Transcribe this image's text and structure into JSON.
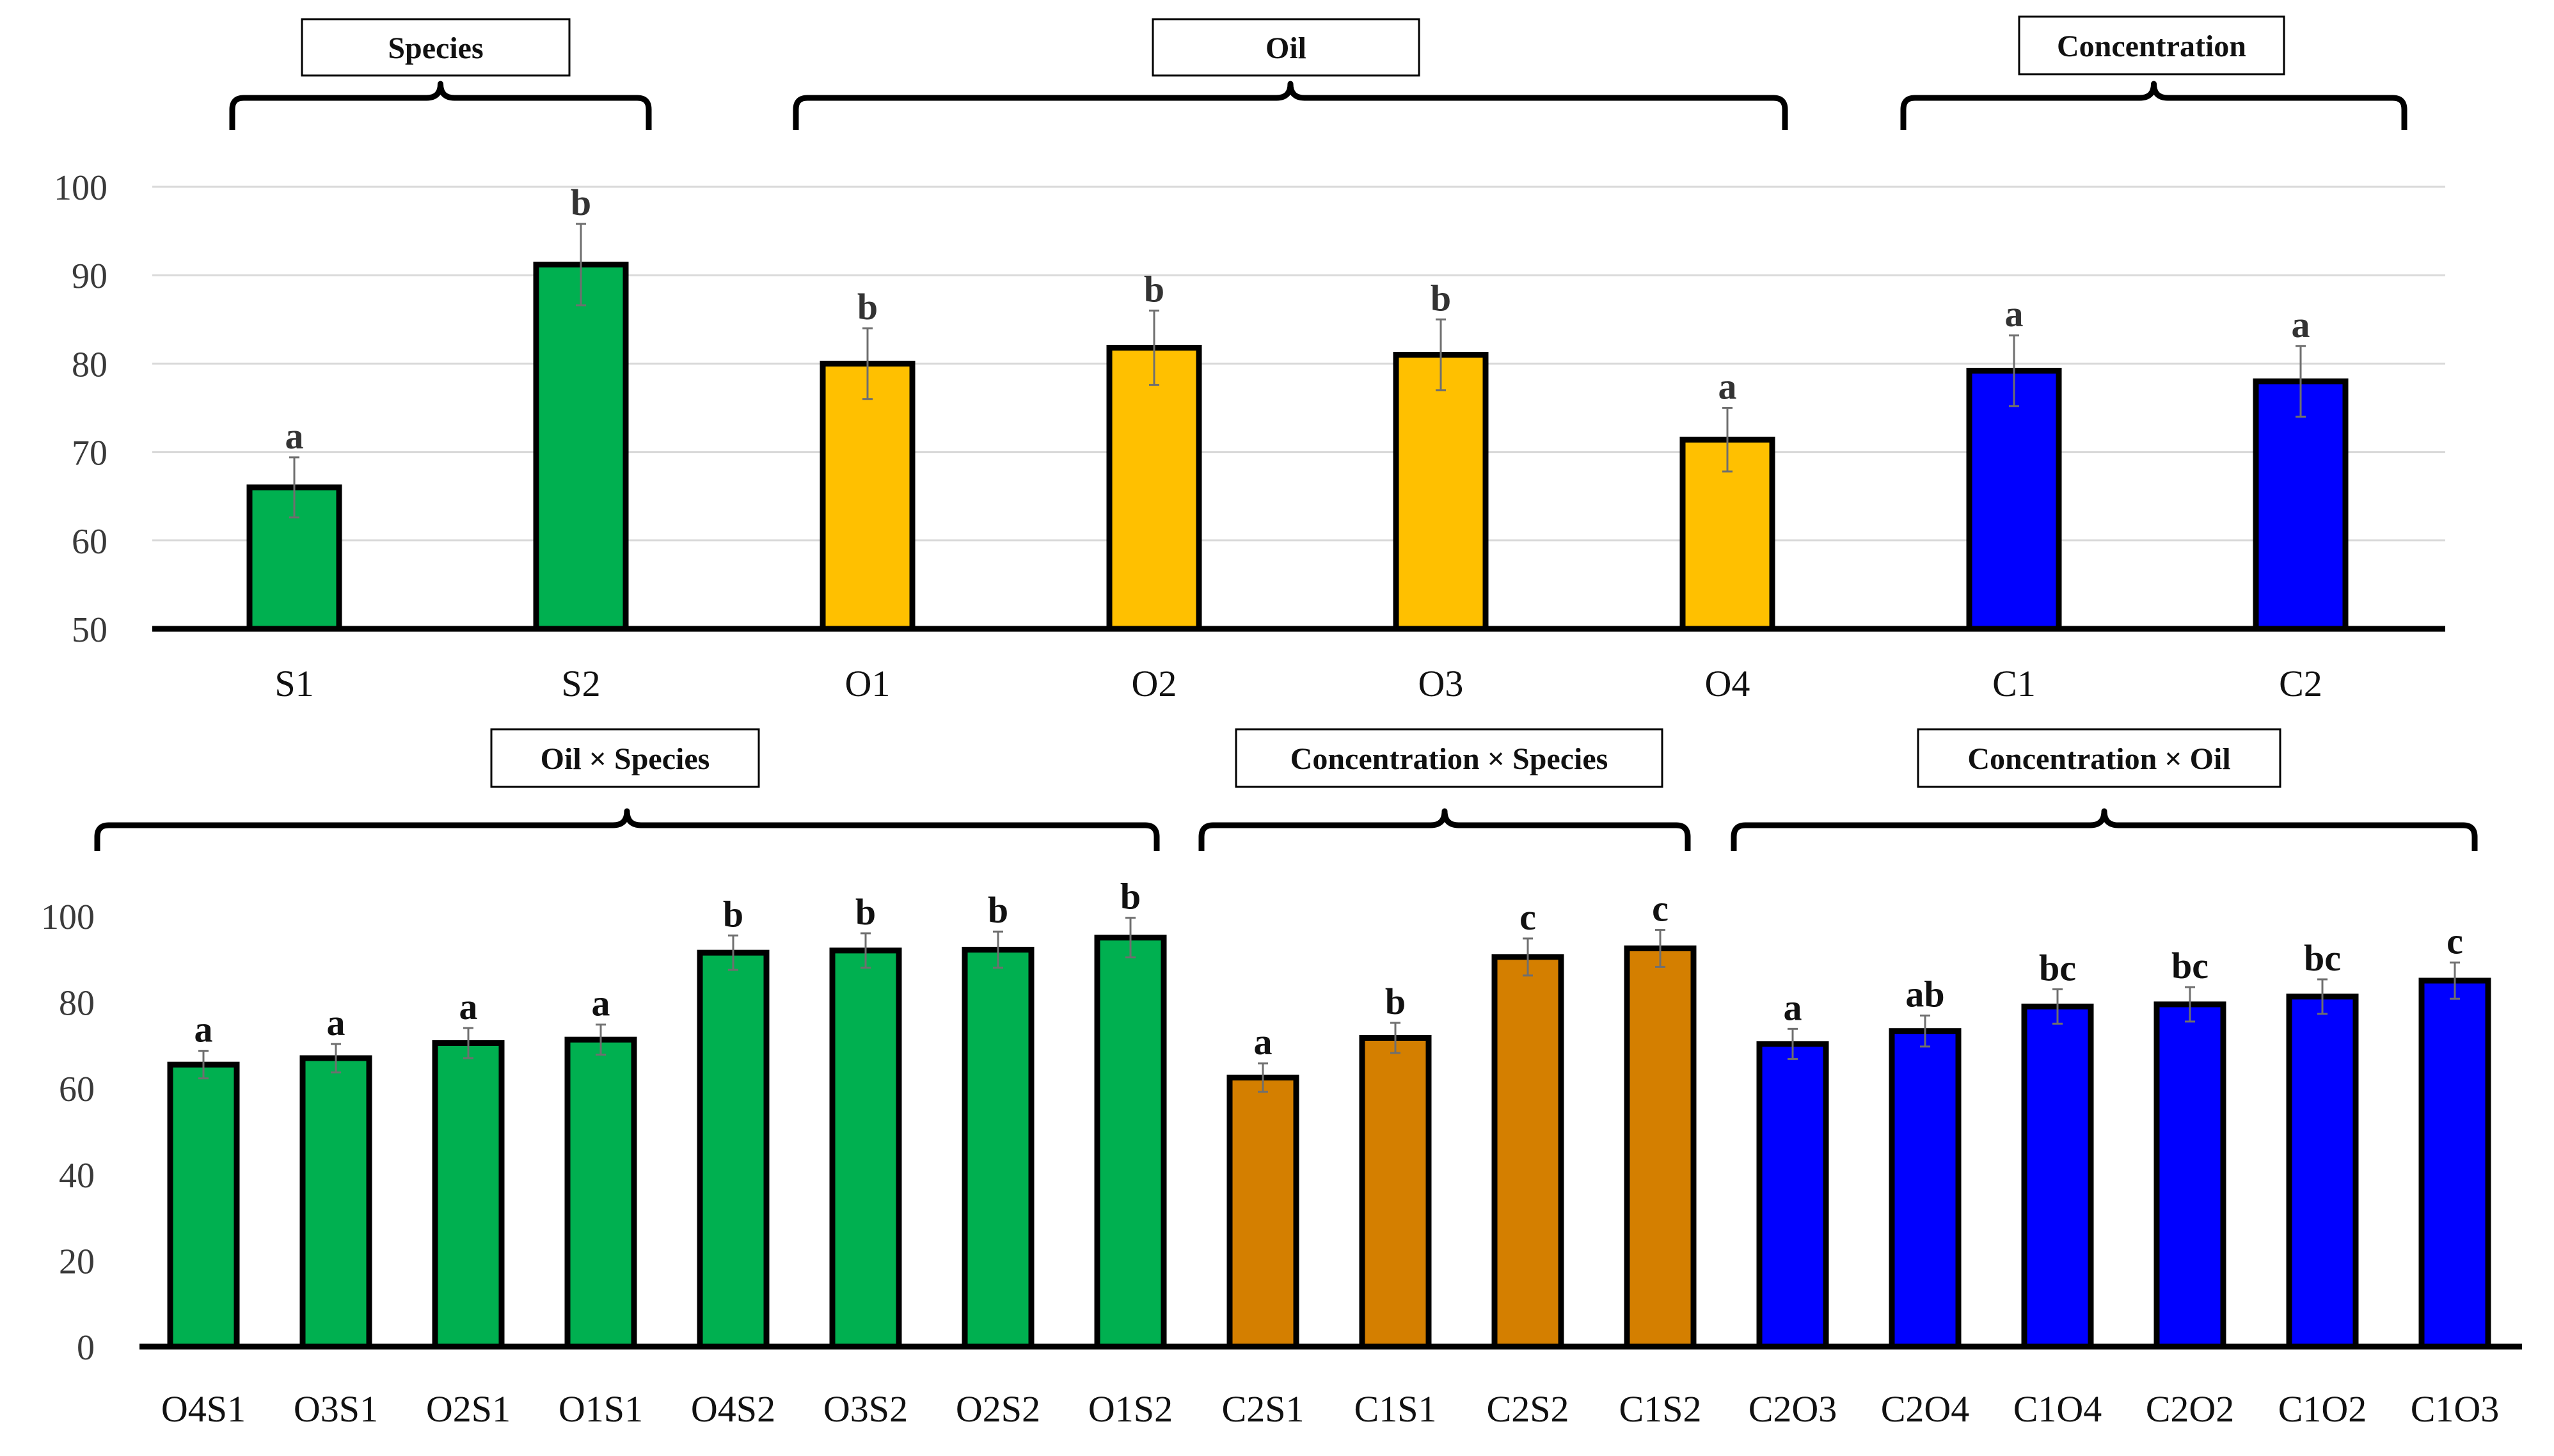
{
  "chart_data": [
    {
      "type": "bar",
      "panel": "top",
      "ylim": [
        50,
        100
      ],
      "yticks": [
        50,
        60,
        70,
        80,
        90,
        100
      ],
      "grid": true,
      "categories": [
        "S1",
        "S2",
        "O1",
        "O2",
        "O3",
        "O4",
        "C1",
        "C2"
      ],
      "values": [
        66,
        91.2,
        80,
        81.8,
        81,
        71.4,
        79.2,
        78
      ],
      "errors": [
        3.4,
        4.6,
        4.0,
        4.2,
        4.0,
        3.6,
        4.0,
        4.0
      ],
      "significance": [
        "a",
        "b",
        "b",
        "b",
        "b",
        "a",
        "a",
        "a"
      ],
      "bar_colors": [
        "#00B050",
        "#00B050",
        "#FFC000",
        "#FFC000",
        "#FFC000",
        "#FFC000",
        "#0000FF",
        "#0000FF"
      ],
      "groups": [
        {
          "label": "Species",
          "categories": [
            "S1",
            "S2"
          ]
        },
        {
          "label": "Oil",
          "categories": [
            "O1",
            "O2",
            "O3",
            "O4"
          ]
        },
        {
          "label": "Concentration",
          "categories": [
            "C1",
            "C2"
          ]
        }
      ]
    },
    {
      "type": "bar",
      "panel": "bottom",
      "ylim": [
        0,
        100
      ],
      "yticks": [
        0,
        20,
        40,
        60,
        80,
        100
      ],
      "grid": false,
      "categories": [
        "O4S1",
        "O3S1",
        "O2S1",
        "O1S1",
        "O4S2",
        "O3S2",
        "O2S2",
        "O1S2",
        "C2S1",
        "C1S1",
        "C2S2",
        "C1S2",
        "C2O3",
        "C2O4",
        "C1O4",
        "C2O2",
        "C1O2",
        "C1O3"
      ],
      "values": [
        65.5,
        67,
        70.5,
        71.3,
        91.5,
        92,
        92.2,
        95,
        62.5,
        71.7,
        90.5,
        92.5,
        70.3,
        73.3,
        79,
        79.5,
        81.3,
        85
      ],
      "errors": [
        3.2,
        3.3,
        3.5,
        3.5,
        4.0,
        4.0,
        4.2,
        4.6,
        3.3,
        3.5,
        4.3,
        4.3,
        3.5,
        3.6,
        4.0,
        4.0,
        4.0,
        4.2
      ],
      "significance": [
        "a",
        "a",
        "a",
        "a",
        "b",
        "b",
        "b",
        "b",
        "a",
        "b",
        "c",
        "c",
        "a",
        "ab",
        "bc",
        "bc",
        "bc",
        "c"
      ],
      "bar_colors": [
        "#00B050",
        "#00B050",
        "#00B050",
        "#00B050",
        "#00B050",
        "#00B050",
        "#00B050",
        "#00B050",
        "#D47F00",
        "#D47F00",
        "#D47F00",
        "#D47F00",
        "#0000FF",
        "#0000FF",
        "#0000FF",
        "#0000FF",
        "#0000FF",
        "#0000FF"
      ],
      "groups": [
        {
          "label": "Oil × Species",
          "categories": [
            "O4S1",
            "O3S1",
            "O2S1",
            "O1S1",
            "O4S2",
            "O3S2",
            "O2S2",
            "O1S2"
          ]
        },
        {
          "label": "Concentration × Species",
          "categories": [
            "C2S1",
            "C1S1",
            "C2S2",
            "C1S2"
          ]
        },
        {
          "label": "Concentration × Oil",
          "categories": [
            "C2O3",
            "C2O4",
            "C1O4",
            "C2O2",
            "C1O2",
            "C1O3"
          ]
        }
      ]
    }
  ]
}
